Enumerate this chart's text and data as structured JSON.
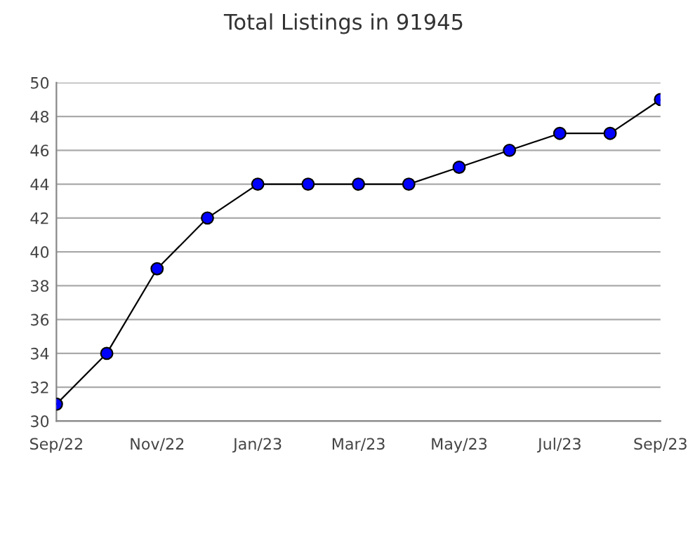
{
  "chart_data": {
    "type": "line",
    "title": "Total Listings in 91945",
    "categories": [
      "Sep/22",
      null,
      "Nov/22",
      null,
      "Jan/23",
      null,
      "Mar/23",
      null,
      "May/23",
      null,
      "Jul/23",
      null,
      "Sep/23"
    ],
    "series": [
      {
        "color": "#0000ff",
        "values": [
          31,
          34,
          39,
          42,
          44,
          44,
          44,
          44,
          45,
          46,
          47,
          47,
          49
        ]
      }
    ],
    "ylim": [
      30,
      50
    ],
    "yticks": [
      30,
      32,
      34,
      36,
      38,
      40,
      42,
      44,
      46,
      48,
      50
    ],
    "grid": "y",
    "marker": "circle",
    "line_style": "solid"
  }
}
